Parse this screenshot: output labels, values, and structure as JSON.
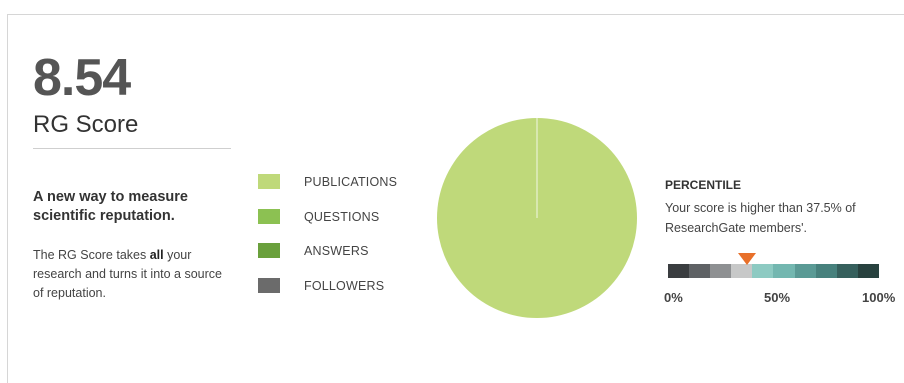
{
  "score": {
    "value": "8.54",
    "label": "RG Score"
  },
  "intro": {
    "tagline": "A new way to measure scientific reputation.",
    "desc_prefix": "The RG Score takes ",
    "desc_bold": "all",
    "desc_suffix": " your research and turns it into a source of reputation."
  },
  "legend": {
    "items": [
      {
        "label": "PUBLICATIONS",
        "color": "#bfd97a"
      },
      {
        "label": "QUESTIONS",
        "color": "#8cc152"
      },
      {
        "label": "ANSWERS",
        "color": "#6aa03c"
      },
      {
        "label": "FOLLOWERS",
        "color": "#6b6b6b"
      }
    ]
  },
  "chart_data": {
    "type": "pie",
    "labels": [
      "PUBLICATIONS",
      "QUESTIONS",
      "ANSWERS",
      "FOLLOWERS"
    ],
    "values": [
      100,
      0,
      0,
      0
    ],
    "colors": [
      "#bfd97a",
      "#8cc152",
      "#6aa03c",
      "#6b6b6b"
    ]
  },
  "percentile": {
    "title": "PERCENTILE",
    "text": "Your score is higher than 37.5% of ResearchGate members'.",
    "value_pct": 37.5,
    "ticks": [
      "0%",
      "50%",
      "100%"
    ],
    "segment_colors": [
      "#3a3d40",
      "#5f6265",
      "#8e9092",
      "#c7c8c8",
      "#8dcac2",
      "#73b7b0",
      "#5a9a95",
      "#47817d",
      "#36605d",
      "#28423f"
    ],
    "marker_color": "#e8702a"
  }
}
